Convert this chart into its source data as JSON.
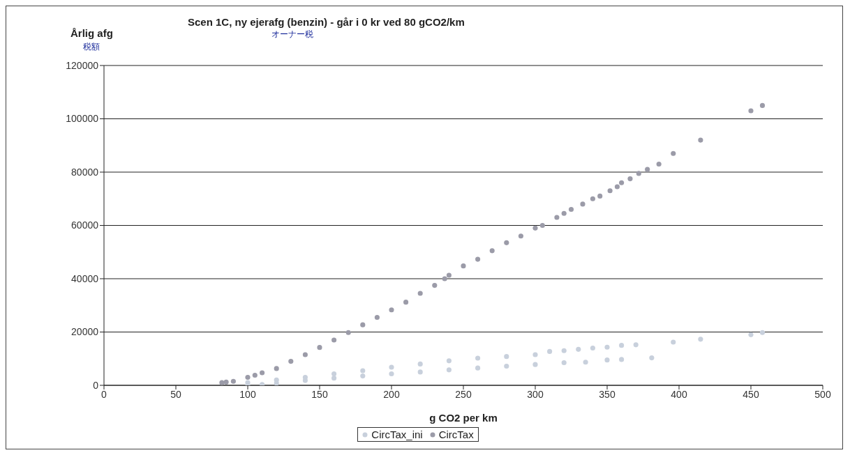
{
  "chart_data": {
    "type": "scatter",
    "title": "Scen 1C, ny ejerafg (benzin) - går i 0 kr ved 80 gCO2/km",
    "xlabel": "g CO2 per km",
    "ylabel": "Årlig afg",
    "annotations": [
      "税額",
      "オーナー税"
    ],
    "series": [
      {
        "name": "CircTax_ini",
        "color": "#c8d0dc",
        "x": [
          100,
          100,
          110,
          120,
          120,
          140,
          140,
          160,
          160,
          180,
          180,
          200,
          200,
          220,
          220,
          240,
          240,
          260,
          260,
          280,
          280,
          300,
          300,
          310,
          320,
          320,
          330,
          335,
          340,
          350,
          350,
          360,
          360,
          370,
          381,
          396,
          415,
          450,
          458
        ],
        "values": [
          1000,
          0,
          300,
          2000,
          800,
          3000,
          1800,
          4300,
          2700,
          5500,
          3500,
          6800,
          4300,
          8000,
          5000,
          9200,
          5800,
          10200,
          6500,
          10800,
          7200,
          11500,
          7800,
          12700,
          13000,
          8500,
          13500,
          8700,
          14000,
          14300,
          9500,
          15000,
          9700,
          15200,
          10300,
          16200,
          17300,
          19000,
          19800
        ]
      },
      {
        "name": "CircTax",
        "color": "#9b9ba8",
        "x": [
          82,
          85,
          90,
          100,
          105,
          110,
          120,
          130,
          140,
          150,
          160,
          170,
          180,
          190,
          200,
          210,
          220,
          230,
          237,
          240,
          250,
          260,
          270,
          280,
          290,
          300,
          305,
          315,
          320,
          325,
          333,
          340,
          345,
          352,
          357,
          360,
          366,
          372,
          378,
          386,
          396,
          415,
          450,
          458
        ],
        "values": [
          1000,
          1200,
          1500,
          3000,
          3800,
          4700,
          6300,
          9000,
          11500,
          14200,
          17000,
          19800,
          22700,
          25500,
          28300,
          31200,
          34500,
          37500,
          40000,
          41300,
          44800,
          47300,
          50500,
          53500,
          56000,
          59000,
          60000,
          63000,
          64500,
          66000,
          68000,
          70000,
          71000,
          73000,
          74500,
          76000,
          77500,
          79500,
          81000,
          83000,
          87000,
          92000,
          103000,
          105000
        ]
      }
    ],
    "xlim": [
      0,
      500
    ],
    "xticks": [
      0,
      50,
      100,
      150,
      200,
      250,
      300,
      350,
      400,
      450,
      500
    ],
    "ylim": [
      0,
      120000
    ],
    "yticks": [
      0,
      20000,
      40000,
      60000,
      80000,
      100000,
      120000
    ],
    "grid": "y",
    "legend": "bottom",
    "marker": "circle"
  }
}
